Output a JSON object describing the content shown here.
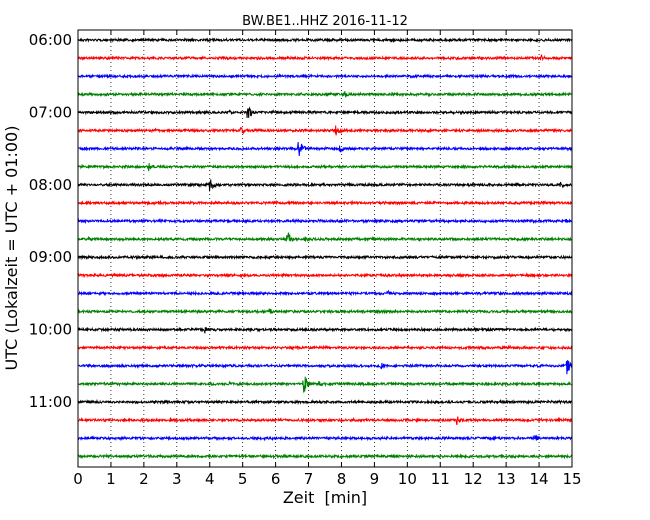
{
  "chart_data": {
    "type": "line",
    "title": "BW.BE1..HHZ 2016-11-12",
    "xlabel": "Zeit  [min]",
    "ylabel": "UTC (Lokalzeit = UTC + 01:00)",
    "xlim": [
      0,
      15
    ],
    "x_ticks": [
      0,
      1,
      2,
      3,
      4,
      5,
      6,
      7,
      8,
      9,
      10,
      11,
      12,
      13,
      14,
      15
    ],
    "x_tick_labels": [
      "0",
      "1",
      "2",
      "3",
      "4",
      "5",
      "6",
      "7",
      "8",
      "9",
      "10",
      "11",
      "12",
      "13",
      "14",
      "15"
    ],
    "y_tick_labels": [
      "06:00",
      "07:00",
      "08:00",
      "09:00",
      "10:00",
      "11:00"
    ],
    "row_minutes": 15,
    "grid": "vertical dotted",
    "traces": [
      {
        "start": "06:00",
        "color": "#000000",
        "events": [
          {
            "t": 0.5,
            "a": 1
          },
          {
            "t": 9.3,
            "a": 1
          }
        ]
      },
      {
        "start": "06:15",
        "color": "#ff0000",
        "events": [
          {
            "t": 11.1,
            "a": 2
          },
          {
            "t": 14.05,
            "a": 4
          }
        ]
      },
      {
        "start": "06:30",
        "color": "#0000ff",
        "events": []
      },
      {
        "start": "06:45",
        "color": "#008000",
        "events": [
          {
            "t": 7.9,
            "a": 2
          },
          {
            "t": 8.1,
            "a": 4
          }
        ]
      },
      {
        "start": "07:00",
        "color": "#000000",
        "events": [
          {
            "t": 4.6,
            "a": 2
          },
          {
            "t": 5.15,
            "a": 9
          },
          {
            "t": 5.9,
            "a": 3
          }
        ]
      },
      {
        "start": "07:15",
        "color": "#ff0000",
        "events": [
          {
            "t": 2.35,
            "a": 2
          },
          {
            "t": 4.95,
            "a": 5
          },
          {
            "t": 7.8,
            "a": 12
          },
          {
            "t": 11.6,
            "a": 2
          }
        ]
      },
      {
        "start": "07:30",
        "color": "#0000ff",
        "events": [
          {
            "t": 6.7,
            "a": 12
          },
          {
            "t": 7.95,
            "a": 4
          }
        ]
      },
      {
        "start": "07:45",
        "color": "#008000",
        "events": [
          {
            "t": 2.15,
            "a": 5
          }
        ]
      },
      {
        "start": "08:00",
        "color": "#000000",
        "events": [
          {
            "t": 4.0,
            "a": 10
          },
          {
            "t": 13.8,
            "a": 3
          },
          {
            "t": 14.65,
            "a": 5
          }
        ]
      },
      {
        "start": "08:15",
        "color": "#ff0000",
        "events": [
          {
            "t": 2.5,
            "a": 2
          },
          {
            "t": 6.0,
            "a": 2
          },
          {
            "t": 8.3,
            "a": 2
          },
          {
            "t": 14.1,
            "a": 3
          }
        ]
      },
      {
        "start": "08:30",
        "color": "#0000ff",
        "events": [
          {
            "t": 1.1,
            "a": 2
          },
          {
            "t": 7.3,
            "a": 2
          },
          {
            "t": 9.6,
            "a": 2
          },
          {
            "t": 14.8,
            "a": 3
          }
        ]
      },
      {
        "start": "08:45",
        "color": "#008000",
        "events": [
          {
            "t": 0.3,
            "a": 4
          },
          {
            "t": 6.35,
            "a": 10
          },
          {
            "t": 6.9,
            "a": 3
          }
        ]
      },
      {
        "start": "09:00",
        "color": "#000000",
        "events": [
          {
            "t": 5.8,
            "a": 2
          }
        ]
      },
      {
        "start": "09:15",
        "color": "#ff0000",
        "events": [
          {
            "t": 4.6,
            "a": 2
          },
          {
            "t": 9.7,
            "a": 2
          }
        ]
      },
      {
        "start": "09:30",
        "color": "#0000ff",
        "events": [
          {
            "t": 9.4,
            "a": 3
          }
        ]
      },
      {
        "start": "09:45",
        "color": "#008000",
        "events": [
          {
            "t": 5.8,
            "a": 4
          }
        ]
      },
      {
        "start": "10:00",
        "color": "#000000",
        "events": [
          {
            "t": 2.1,
            "a": 2
          },
          {
            "t": 3.85,
            "a": 4
          },
          {
            "t": 12.0,
            "a": 2
          }
        ]
      },
      {
        "start": "10:15",
        "color": "#ff0000",
        "events": []
      },
      {
        "start": "10:30",
        "color": "#0000ff",
        "events": [
          {
            "t": 6.4,
            "a": 2
          },
          {
            "t": 9.2,
            "a": 4
          },
          {
            "t": 14.85,
            "a": 10
          }
        ]
      },
      {
        "start": "10:45",
        "color": "#008000",
        "events": [
          {
            "t": 4.6,
            "a": 2
          },
          {
            "t": 6.85,
            "a": 12
          },
          {
            "t": 7.3,
            "a": 3
          }
        ]
      },
      {
        "start": "11:00",
        "color": "#000000",
        "events": [
          {
            "t": 6.6,
            "a": 2
          },
          {
            "t": 9.0,
            "a": 2
          }
        ]
      },
      {
        "start": "11:15",
        "color": "#ff0000",
        "events": [
          {
            "t": 2.8,
            "a": 3
          },
          {
            "t": 11.5,
            "a": 5
          },
          {
            "t": 14.6,
            "a": 3
          }
        ]
      },
      {
        "start": "11:30",
        "color": "#0000ff",
        "events": [
          {
            "t": 12.5,
            "a": 2
          },
          {
            "t": 13.85,
            "a": 5
          }
        ]
      },
      {
        "start": "11:45",
        "color": "#008000",
        "events": []
      }
    ]
  }
}
